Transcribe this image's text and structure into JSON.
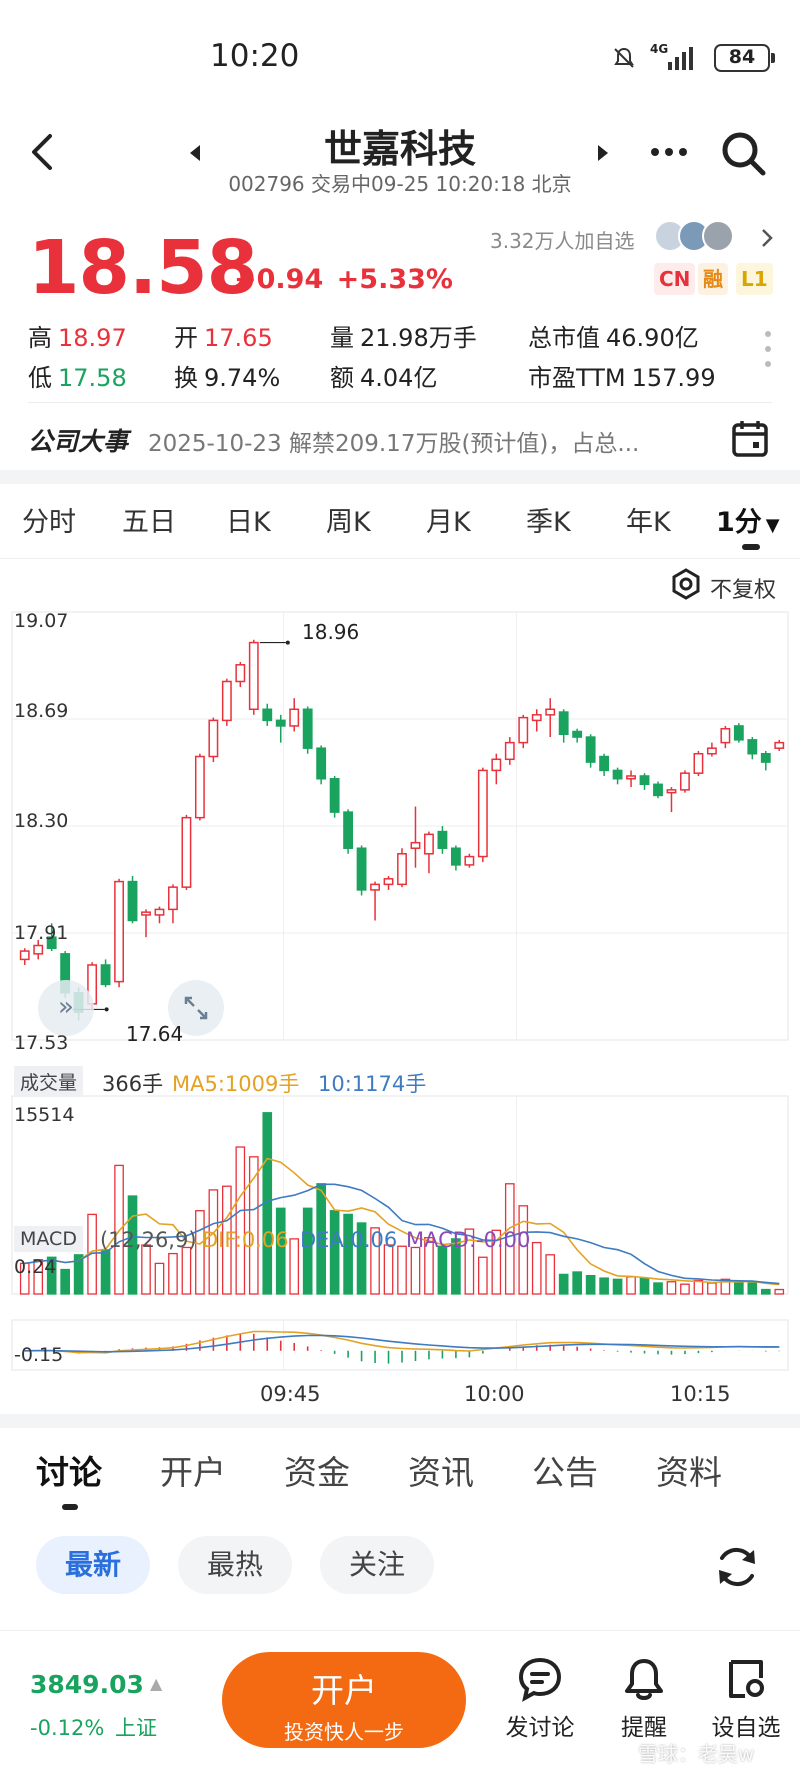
{
  "status": {
    "time": "10:20",
    "network": "4G",
    "battery": "84"
  },
  "header": {
    "title": "世嘉科技",
    "code": "002796",
    "subtitle": "交易中09-25 10:20:18 北京"
  },
  "quote": {
    "price": "18.58",
    "change": "+0.94",
    "change_pct": "+5.33%",
    "followers": "3.32万人加自选",
    "badges": [
      "CN",
      "融",
      "L1"
    ]
  },
  "stats": {
    "high_label": "高",
    "high": "18.97",
    "open_label": "开",
    "open": "17.65",
    "volume_label": "量",
    "volume": "21.98万手",
    "mktcap_label": "总市值",
    "mktcap": "46.90亿",
    "low_label": "低",
    "low": "17.58",
    "turnover_label": "换",
    "turnover": "9.74%",
    "amount_label": "额",
    "amount": "4.04亿",
    "pe_label": "市盈TTM",
    "pe": "157.99"
  },
  "event": {
    "title": "公司大事",
    "text": "2025-10-23 解禁209.17万股(预计值)，占总..."
  },
  "chart_tabs": [
    {
      "label": "分时"
    },
    {
      "label": "五日"
    },
    {
      "label": "日K"
    },
    {
      "label": "周K"
    },
    {
      "label": "月K"
    },
    {
      "label": "季K"
    },
    {
      "label": "年K"
    },
    {
      "label": "1分"
    }
  ],
  "adjust_label": "不复权",
  "chart_data": {
    "type": "candlestick",
    "price_axis": [
      "19.07",
      "18.69",
      "18.30",
      "17.91",
      "17.53"
    ],
    "ylim": [
      17.53,
      19.07
    ],
    "high_marker": "18.96",
    "low_marker": "17.64",
    "time_labels": [
      "09:45",
      "10:00",
      "10:15"
    ],
    "candles": [
      [
        17.82,
        17.85,
        17.8,
        17.86
      ],
      [
        17.84,
        17.87,
        17.82,
        17.89
      ],
      [
        17.9,
        17.86,
        17.85,
        17.95
      ],
      [
        17.84,
        17.7,
        17.68,
        17.85
      ],
      [
        17.7,
        17.63,
        17.6,
        17.72
      ],
      [
        17.66,
        17.8,
        17.64,
        17.81
      ],
      [
        17.8,
        17.73,
        17.72,
        17.82
      ],
      [
        17.74,
        18.1,
        17.72,
        18.11
      ],
      [
        18.1,
        17.96,
        17.95,
        18.12
      ],
      [
        17.98,
        17.99,
        17.9,
        18.0
      ],
      [
        17.98,
        18.0,
        17.95,
        18.01
      ],
      [
        18.0,
        18.08,
        17.95,
        18.09
      ],
      [
        18.08,
        18.33,
        18.07,
        18.34
      ],
      [
        18.33,
        18.55,
        18.32,
        18.56
      ],
      [
        18.55,
        18.68,
        18.53,
        18.69
      ],
      [
        18.68,
        18.82,
        18.66,
        18.83
      ],
      [
        18.82,
        18.88,
        18.8,
        18.89
      ],
      [
        18.72,
        18.96,
        18.7,
        18.97
      ],
      [
        18.72,
        18.68,
        18.66,
        18.74
      ],
      [
        18.68,
        18.66,
        18.6,
        18.7
      ],
      [
        18.66,
        18.72,
        18.64,
        18.76
      ],
      [
        18.72,
        18.58,
        18.56,
        18.73
      ],
      [
        18.58,
        18.47,
        18.45,
        18.59
      ],
      [
        18.47,
        18.35,
        18.33,
        18.48
      ],
      [
        18.35,
        18.22,
        18.2,
        18.36
      ],
      [
        18.22,
        18.07,
        18.05,
        18.23
      ],
      [
        18.07,
        18.09,
        17.96,
        18.1
      ],
      [
        18.09,
        18.11,
        18.07,
        18.12
      ],
      [
        18.09,
        18.2,
        18.08,
        18.22
      ],
      [
        18.22,
        18.24,
        18.15,
        18.37
      ],
      [
        18.2,
        18.27,
        18.13,
        18.28
      ],
      [
        18.28,
        18.22,
        18.2,
        18.3
      ],
      [
        18.22,
        18.16,
        18.14,
        18.23
      ],
      [
        18.16,
        18.19,
        18.15,
        18.2
      ],
      [
        18.19,
        18.5,
        18.17,
        18.51
      ],
      [
        18.5,
        18.54,
        18.45,
        18.56
      ],
      [
        18.54,
        18.6,
        18.52,
        18.62
      ],
      [
        18.6,
        18.69,
        18.58,
        18.7
      ],
      [
        18.68,
        18.7,
        18.64,
        18.72
      ],
      [
        18.7,
        18.72,
        18.62,
        18.76
      ],
      [
        18.71,
        18.63,
        18.6,
        18.72
      ],
      [
        18.64,
        18.62,
        18.6,
        18.65
      ],
      [
        18.62,
        18.53,
        18.51,
        18.63
      ],
      [
        18.55,
        18.5,
        18.48,
        18.56
      ],
      [
        18.5,
        18.47,
        18.45,
        18.51
      ],
      [
        18.47,
        18.48,
        18.44,
        18.5
      ],
      [
        18.48,
        18.45,
        18.43,
        18.49
      ],
      [
        18.45,
        18.41,
        18.4,
        18.46
      ],
      [
        18.42,
        18.43,
        18.35,
        18.44
      ],
      [
        18.43,
        18.49,
        18.42,
        18.5
      ],
      [
        18.49,
        18.56,
        18.48,
        18.57
      ],
      [
        18.56,
        18.58,
        18.55,
        18.6
      ],
      [
        18.6,
        18.65,
        18.58,
        18.66
      ],
      [
        18.66,
        18.61,
        18.6,
        18.67
      ],
      [
        18.61,
        18.56,
        18.54,
        18.62
      ],
      [
        18.56,
        18.53,
        18.5,
        18.57
      ],
      [
        18.58,
        18.6,
        18.57,
        18.61
      ]
    ],
    "volume": {
      "label": "成交量",
      "current": "366手",
      "ma5_label": "MA5:1009手",
      "ma10_label": "10:1174手",
      "max": "15514",
      "values": [
        2500,
        2800,
        3000,
        2000,
        3200,
        6500,
        3600,
        10500,
        8000,
        4000,
        2500,
        3300,
        3800,
        6800,
        8500,
        8800,
        12000,
        11200,
        14800,
        7000,
        4500,
        7000,
        9000,
        6800,
        6500,
        5800,
        5400,
        4000,
        3900,
        3800,
        4600,
        3900,
        4500,
        5300,
        3000,
        5200,
        9000,
        7200,
        4200,
        3200,
        1600,
        1800,
        1500,
        1300,
        1200,
        1400,
        1300,
        900,
        1000,
        800,
        1100,
        900,
        1200,
        1000,
        900,
        366,
        366
      ]
    },
    "macd": {
      "label": "MACD",
      "params": "(12,26,9)",
      "dif_label": "DIF:0.06",
      "dea_label": "DEA:0.06",
      "macd_label": "MACD:-0.00",
      "ylabels": [
        "0.24",
        "-0.15"
      ],
      "ylim": [
        -0.15,
        0.24
      ]
    },
    "colors": {
      "up": "#e8313a",
      "down": "#1aa35e",
      "ma5": "#e3a224",
      "ma10": "#3f7bc1"
    }
  },
  "bottom_tabs": [
    {
      "label": "讨论"
    },
    {
      "label": "开户"
    },
    {
      "label": "资金"
    },
    {
      "label": "资讯"
    },
    {
      "label": "公告"
    },
    {
      "label": "资料"
    }
  ],
  "filters": [
    {
      "label": "最新"
    },
    {
      "label": "最热"
    },
    {
      "label": "关注"
    }
  ],
  "index": {
    "value": "3849.03",
    "change": "-0.12%",
    "name": "上证"
  },
  "toolbar": {
    "open_account": "开户",
    "open_account_sub": "投资快人一步",
    "discuss": "发讨论",
    "remind": "提醒",
    "watchlist": "设自选"
  },
  "watermark": "雪球：老吴w"
}
